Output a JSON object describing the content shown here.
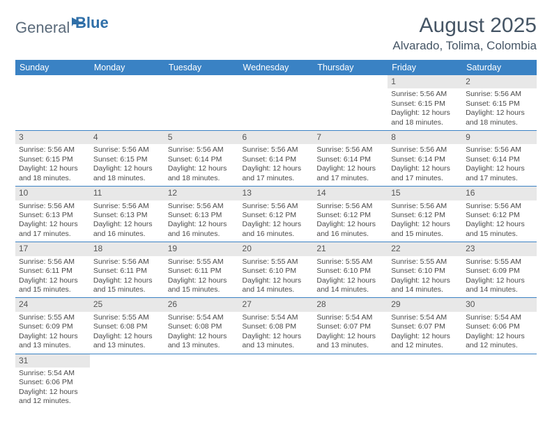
{
  "logo": {
    "text1": "General",
    "text2": "Blue"
  },
  "title": "August 2025",
  "location": "Alvarado, Tolima, Colombia",
  "colors": {
    "header_bg": "#3a82c4",
    "header_text": "#ffffff",
    "daynum_bg": "#e8e8e8",
    "rule": "#3a82c4",
    "title_color": "#455565",
    "logo_gray": "#5a6a7a",
    "logo_blue": "#2f6fa8"
  },
  "weekdays": [
    "Sunday",
    "Monday",
    "Tuesday",
    "Wednesday",
    "Thursday",
    "Friday",
    "Saturday"
  ],
  "weeks": [
    [
      null,
      null,
      null,
      null,
      null,
      {
        "n": "1",
        "sr": "5:56 AM",
        "ss": "6:15 PM",
        "dl": "12 hours and 18 minutes."
      },
      {
        "n": "2",
        "sr": "5:56 AM",
        "ss": "6:15 PM",
        "dl": "12 hours and 18 minutes."
      }
    ],
    [
      {
        "n": "3",
        "sr": "5:56 AM",
        "ss": "6:15 PM",
        "dl": "12 hours and 18 minutes."
      },
      {
        "n": "4",
        "sr": "5:56 AM",
        "ss": "6:15 PM",
        "dl": "12 hours and 18 minutes."
      },
      {
        "n": "5",
        "sr": "5:56 AM",
        "ss": "6:14 PM",
        "dl": "12 hours and 18 minutes."
      },
      {
        "n": "6",
        "sr": "5:56 AM",
        "ss": "6:14 PM",
        "dl": "12 hours and 17 minutes."
      },
      {
        "n": "7",
        "sr": "5:56 AM",
        "ss": "6:14 PM",
        "dl": "12 hours and 17 minutes."
      },
      {
        "n": "8",
        "sr": "5:56 AM",
        "ss": "6:14 PM",
        "dl": "12 hours and 17 minutes."
      },
      {
        "n": "9",
        "sr": "5:56 AM",
        "ss": "6:14 PM",
        "dl": "12 hours and 17 minutes."
      }
    ],
    [
      {
        "n": "10",
        "sr": "5:56 AM",
        "ss": "6:13 PM",
        "dl": "12 hours and 17 minutes."
      },
      {
        "n": "11",
        "sr": "5:56 AM",
        "ss": "6:13 PM",
        "dl": "12 hours and 16 minutes."
      },
      {
        "n": "12",
        "sr": "5:56 AM",
        "ss": "6:13 PM",
        "dl": "12 hours and 16 minutes."
      },
      {
        "n": "13",
        "sr": "5:56 AM",
        "ss": "6:12 PM",
        "dl": "12 hours and 16 minutes."
      },
      {
        "n": "14",
        "sr": "5:56 AM",
        "ss": "6:12 PM",
        "dl": "12 hours and 16 minutes."
      },
      {
        "n": "15",
        "sr": "5:56 AM",
        "ss": "6:12 PM",
        "dl": "12 hours and 15 minutes."
      },
      {
        "n": "16",
        "sr": "5:56 AM",
        "ss": "6:12 PM",
        "dl": "12 hours and 15 minutes."
      }
    ],
    [
      {
        "n": "17",
        "sr": "5:56 AM",
        "ss": "6:11 PM",
        "dl": "12 hours and 15 minutes."
      },
      {
        "n": "18",
        "sr": "5:56 AM",
        "ss": "6:11 PM",
        "dl": "12 hours and 15 minutes."
      },
      {
        "n": "19",
        "sr": "5:55 AM",
        "ss": "6:11 PM",
        "dl": "12 hours and 15 minutes."
      },
      {
        "n": "20",
        "sr": "5:55 AM",
        "ss": "6:10 PM",
        "dl": "12 hours and 14 minutes."
      },
      {
        "n": "21",
        "sr": "5:55 AM",
        "ss": "6:10 PM",
        "dl": "12 hours and 14 minutes."
      },
      {
        "n": "22",
        "sr": "5:55 AM",
        "ss": "6:10 PM",
        "dl": "12 hours and 14 minutes."
      },
      {
        "n": "23",
        "sr": "5:55 AM",
        "ss": "6:09 PM",
        "dl": "12 hours and 14 minutes."
      }
    ],
    [
      {
        "n": "24",
        "sr": "5:55 AM",
        "ss": "6:09 PM",
        "dl": "12 hours and 13 minutes."
      },
      {
        "n": "25",
        "sr": "5:55 AM",
        "ss": "6:08 PM",
        "dl": "12 hours and 13 minutes."
      },
      {
        "n": "26",
        "sr": "5:54 AM",
        "ss": "6:08 PM",
        "dl": "12 hours and 13 minutes."
      },
      {
        "n": "27",
        "sr": "5:54 AM",
        "ss": "6:08 PM",
        "dl": "12 hours and 13 minutes."
      },
      {
        "n": "28",
        "sr": "5:54 AM",
        "ss": "6:07 PM",
        "dl": "12 hours and 13 minutes."
      },
      {
        "n": "29",
        "sr": "5:54 AM",
        "ss": "6:07 PM",
        "dl": "12 hours and 12 minutes."
      },
      {
        "n": "30",
        "sr": "5:54 AM",
        "ss": "6:06 PM",
        "dl": "12 hours and 12 minutes."
      }
    ],
    [
      {
        "n": "31",
        "sr": "5:54 AM",
        "ss": "6:06 PM",
        "dl": "12 hours and 12 minutes."
      },
      null,
      null,
      null,
      null,
      null,
      null
    ]
  ],
  "labels": {
    "sunrise": "Sunrise: ",
    "sunset": "Sunset: ",
    "daylight": "Daylight: "
  }
}
